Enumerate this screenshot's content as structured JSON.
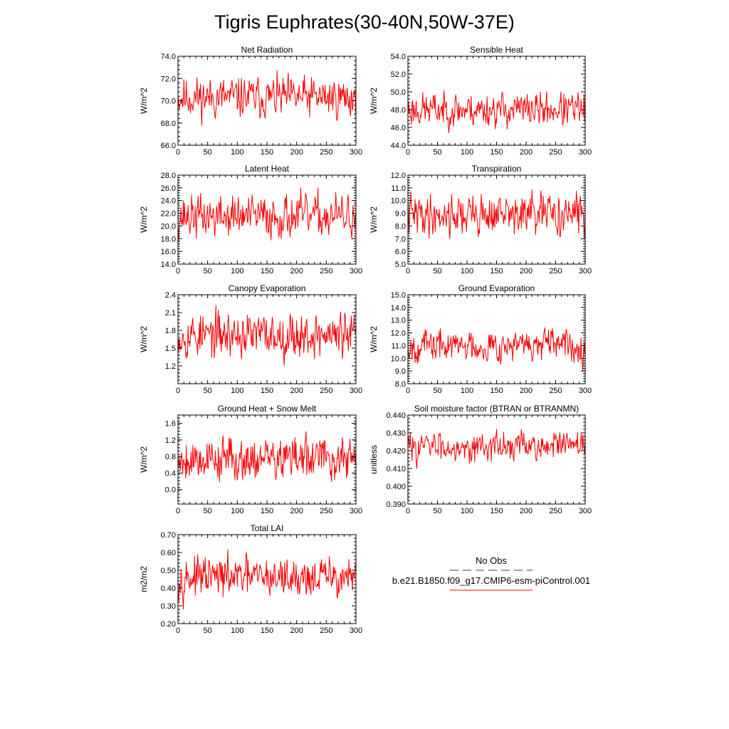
{
  "figure_title": "Tigris Euphrates(30-40N,50W-37E)",
  "legend": {
    "obs_label": "No Obs",
    "model_label": "b.e21.B1850.f09_g17.CMIP6-esm-piControl.001",
    "obs_color": "#3a3a8c",
    "model_color": "#ff0000"
  },
  "chart_data": [
    {
      "type": "line",
      "title": "Net Radiation",
      "ylabel": "W/m^2",
      "xlim": [
        0,
        300
      ],
      "ylim": [
        66,
        74
      ],
      "yticks": [
        66,
        68,
        70,
        72,
        74
      ],
      "ydecimals": 1,
      "xticks": [
        0,
        50,
        100,
        150,
        200,
        250,
        300
      ],
      "n": 301,
      "mean": 70.3,
      "amp": 1.25,
      "seed": 11,
      "color": "#ff0000"
    },
    {
      "type": "line",
      "title": "Sensible Heat",
      "ylabel": "W/m^2",
      "xlim": [
        0,
        300
      ],
      "ylim": [
        44,
        54
      ],
      "yticks": [
        44,
        46,
        48,
        50,
        52,
        54
      ],
      "ydecimals": 1,
      "xticks": [
        0,
        50,
        100,
        150,
        200,
        250,
        300
      ],
      "n": 301,
      "mean": 48.0,
      "amp": 1.3,
      "seed": 23,
      "color": "#ff0000"
    },
    {
      "type": "line",
      "title": "Latent Heat",
      "ylabel": "W/m^2",
      "xlim": [
        0,
        300
      ],
      "ylim": [
        14,
        28
      ],
      "yticks": [
        14,
        16,
        18,
        20,
        22,
        24,
        26,
        28
      ],
      "ydecimals": 1,
      "xticks": [
        0,
        50,
        100,
        150,
        200,
        250,
        300
      ],
      "n": 301,
      "mean": 21.5,
      "amp": 2.3,
      "seed": 37,
      "color": "#ff0000"
    },
    {
      "type": "line",
      "title": "Transpiration",
      "ylabel": "W/m^2",
      "xlim": [
        0,
        300
      ],
      "ylim": [
        5,
        12
      ],
      "yticks": [
        5,
        6,
        7,
        8,
        9,
        10,
        11,
        12
      ],
      "ydecimals": 1,
      "xticks": [
        0,
        50,
        100,
        150,
        200,
        250,
        300
      ],
      "n": 301,
      "mean": 8.9,
      "amp": 1.1,
      "seed": 41,
      "color": "#ff0000"
    },
    {
      "type": "line",
      "title": "Canopy Evaporation",
      "ylabel": "W/m^2",
      "xlim": [
        0,
        300
      ],
      "ylim": [
        0.9,
        2.4
      ],
      "yticks": [
        1.2,
        1.5,
        1.8,
        2.1,
        2.4
      ],
      "ydecimals": 1,
      "xticks": [
        0,
        50,
        100,
        150,
        200,
        250,
        300
      ],
      "n": 301,
      "mean": 1.72,
      "amp": 0.26,
      "seed": 53,
      "color": "#ff0000"
    },
    {
      "type": "line",
      "title": "Ground Evaporation",
      "ylabel": "W/m^2",
      "xlim": [
        0,
        300
      ],
      "ylim": [
        8,
        15
      ],
      "yticks": [
        8,
        9,
        10,
        11,
        12,
        13,
        14,
        15
      ],
      "ydecimals": 1,
      "xticks": [
        0,
        50,
        100,
        150,
        200,
        250,
        300
      ],
      "n": 301,
      "mean": 11.0,
      "amp": 0.85,
      "seed": 67,
      "color": "#ff0000"
    },
    {
      "type": "line",
      "title": "Ground Heat + Snow Melt",
      "ylabel": "W/m^2",
      "xlim": [
        0,
        300
      ],
      "ylim": [
        -0.35,
        1.8
      ],
      "yticks": [
        0.0,
        0.4,
        0.8,
        1.2,
        1.6
      ],
      "ydecimals": 1,
      "xticks": [
        0,
        50,
        100,
        150,
        200,
        250,
        300
      ],
      "n": 301,
      "mean": 0.75,
      "amp": 0.36,
      "seed": 79,
      "color": "#ff0000"
    },
    {
      "type": "line",
      "title": "Soil moisture factor (BTRAN or BTRANMN)",
      "ylabel": "unitless",
      "xlim": [
        0,
        300
      ],
      "ylim": [
        0.39,
        0.44
      ],
      "yticks": [
        0.39,
        0.4,
        0.41,
        0.42,
        0.43,
        0.44
      ],
      "ydecimals": 3,
      "xticks": [
        0,
        50,
        100,
        150,
        200,
        250,
        300
      ],
      "n": 301,
      "mean": 0.4225,
      "amp": 0.0055,
      "seed": 83,
      "color": "#ff0000"
    },
    {
      "type": "line",
      "title": "Total LAI",
      "ylabel": "m2/m2",
      "xlim": [
        0,
        300
      ],
      "ylim": [
        0.2,
        0.7
      ],
      "yticks": [
        0.2,
        0.3,
        0.4,
        0.5,
        0.6,
        0.7
      ],
      "ydecimals": 2,
      "xticks": [
        0,
        50,
        100,
        150,
        200,
        250,
        300
      ],
      "n": 301,
      "mean": 0.46,
      "amp": 0.075,
      "seed": 97,
      "color": "#ff0000"
    }
  ]
}
